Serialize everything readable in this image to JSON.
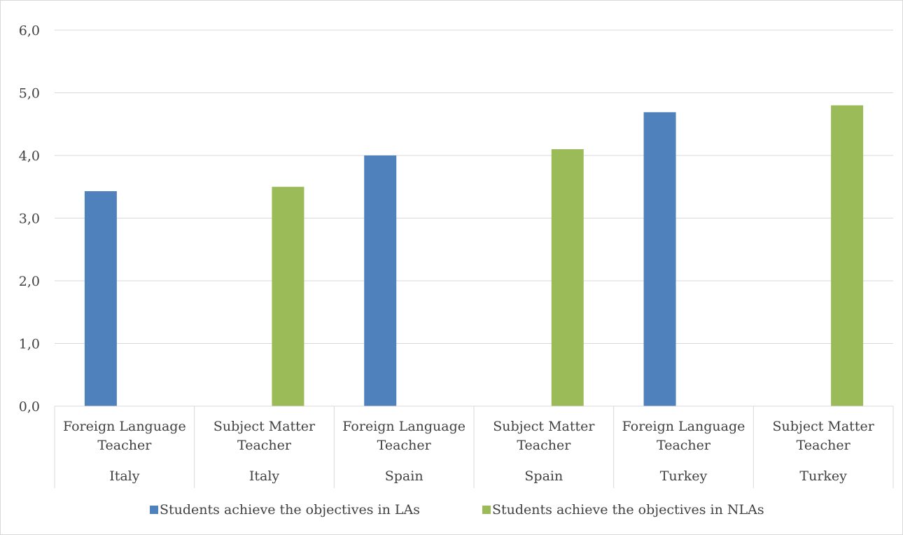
{
  "chart_data": {
    "type": "bar",
    "title": "",
    "xlabel": "",
    "ylabel": "",
    "ylim": [
      0,
      6
    ],
    "yticks": [
      "0,0",
      "1,0",
      "2,0",
      "3,0",
      "4,0",
      "5,0",
      "6,0"
    ],
    "ytick_values": [
      0,
      1,
      2,
      3,
      4,
      5,
      6
    ],
    "grid": true,
    "legend_position": "bottom",
    "categories": [
      {
        "line1": "Foreign Language",
        "line2": "Teacher",
        "group": "Italy"
      },
      {
        "line1": "Subject Matter",
        "line2": "Teacher",
        "group": "Italy"
      },
      {
        "line1": "Foreign Language",
        "line2": "Teacher",
        "group": "Spain"
      },
      {
        "line1": "Subject Matter",
        "line2": "Teacher",
        "group": "Spain"
      },
      {
        "line1": "Foreign Language",
        "line2": "Teacher",
        "group": "Turkey"
      },
      {
        "line1": "Subject Matter",
        "line2": "Teacher",
        "group": "Turkey"
      }
    ],
    "series": [
      {
        "name": "Students achieve the objectives in LAs",
        "color": "#4f81bd",
        "values": [
          3.43,
          null,
          4.0,
          null,
          4.69,
          null
        ]
      },
      {
        "name": "Students achieve the objectives in NLAs",
        "color": "#9bbb59",
        "values": [
          null,
          3.5,
          null,
          4.1,
          null,
          4.8
        ]
      }
    ]
  }
}
